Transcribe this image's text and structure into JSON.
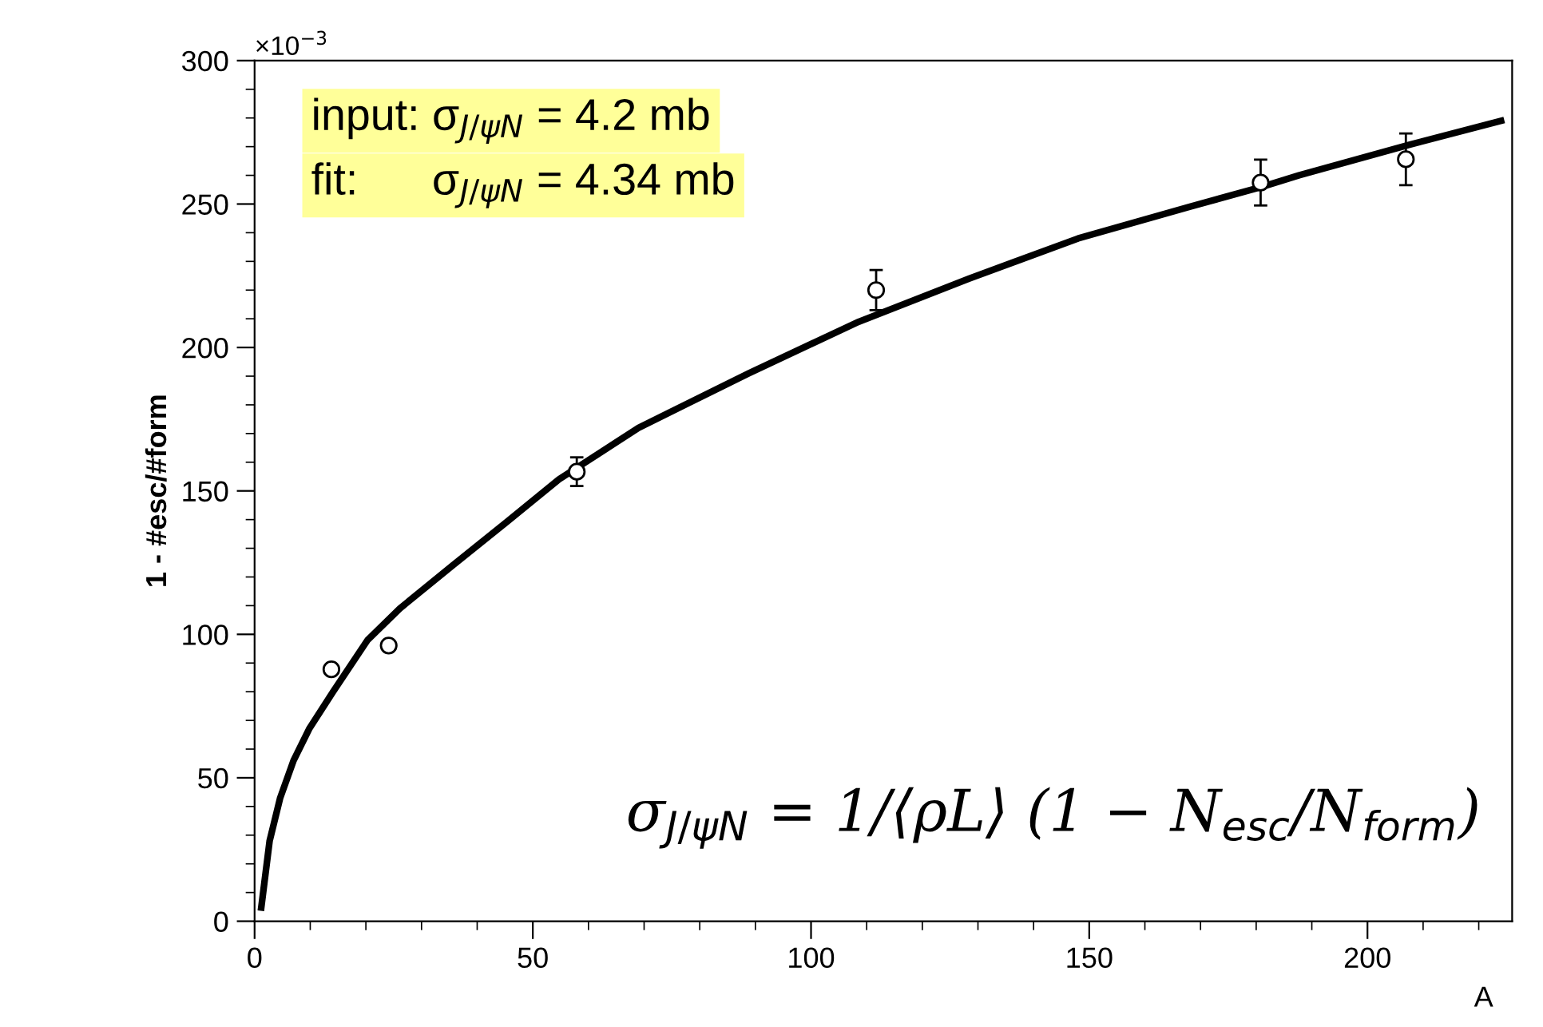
{
  "chart_data": {
    "type": "scatter",
    "xlabel": "A",
    "ylabel": "1 - #esc/#form",
    "xlim": [
      0,
      226
    ],
    "ylim": [
      0,
      300
    ],
    "xticks": [
      0,
      50,
      100,
      150,
      200
    ],
    "yticks": [
      0,
      50,
      100,
      150,
      200,
      250,
      300
    ],
    "grid": false,
    "marker": "circle",
    "series": [
      {
        "color": "#000000",
        "x": [
          13.8,
          24.1,
          57.9,
          111.7,
          180.8,
          206.9
        ],
        "values": [
          87.8,
          96.1,
          156.7,
          220,
          257.5,
          265.6
        ],
        "errors": [
          null,
          null,
          5,
          7,
          8,
          9
        ]
      },
      {
        "type": "line",
        "color": "#000000",
        "line_style": "solid",
        "marker": "none",
        "x": [
          1.2,
          2.7,
          4.6,
          7.0,
          9.8,
          14.1,
          20.3,
          26.1,
          35.6,
          45.2,
          54.7,
          69,
          88.8,
          108.6,
          128.4,
          148,
          168,
          181,
          187.7,
          207.4,
          224
        ],
        "values": [
          4.8,
          28,
          43,
          56,
          67,
          80,
          98,
          109,
          124,
          139,
          154,
          172,
          191,
          209,
          224,
          238,
          249,
          256,
          260,
          270.6,
          279
        ]
      }
    ],
    "annotations": [
      "×10$^{−3}$",
      "input: σ$_{J/ψN}$ = 4.2 mb",
      "fit:      σ$_{J/ψN}$ = 4.34 mb",
      "σ$_{J/ψN}$ = 1/⟨ρL⟩ (1 − N$_{esc}$/N$_{form}$)"
    ]
  }
}
